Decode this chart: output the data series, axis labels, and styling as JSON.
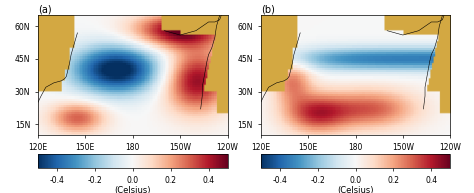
{
  "title_a": "(a)",
  "title_b": "(b)",
  "lon_range": [
    120,
    240
  ],
  "lat_range": [
    10,
    65
  ],
  "colorbar_label": "(Celsius)",
  "colorbar_ticks": [
    -0.4,
    -0.2,
    0.0,
    0.2,
    0.4
  ],
  "vmin": -0.5,
  "vmax": 0.5,
  "yticks": [
    15,
    30,
    45,
    60
  ],
  "ytick_labels": [
    "15N",
    "30N",
    "45N",
    "60N"
  ],
  "xticks": [
    120,
    150,
    180,
    210,
    240
  ],
  "xtick_labels": [
    "120E",
    "150E",
    "180",
    "150W",
    "120W"
  ],
  "background_color": "#ffffff",
  "land_color": "#d4a843"
}
